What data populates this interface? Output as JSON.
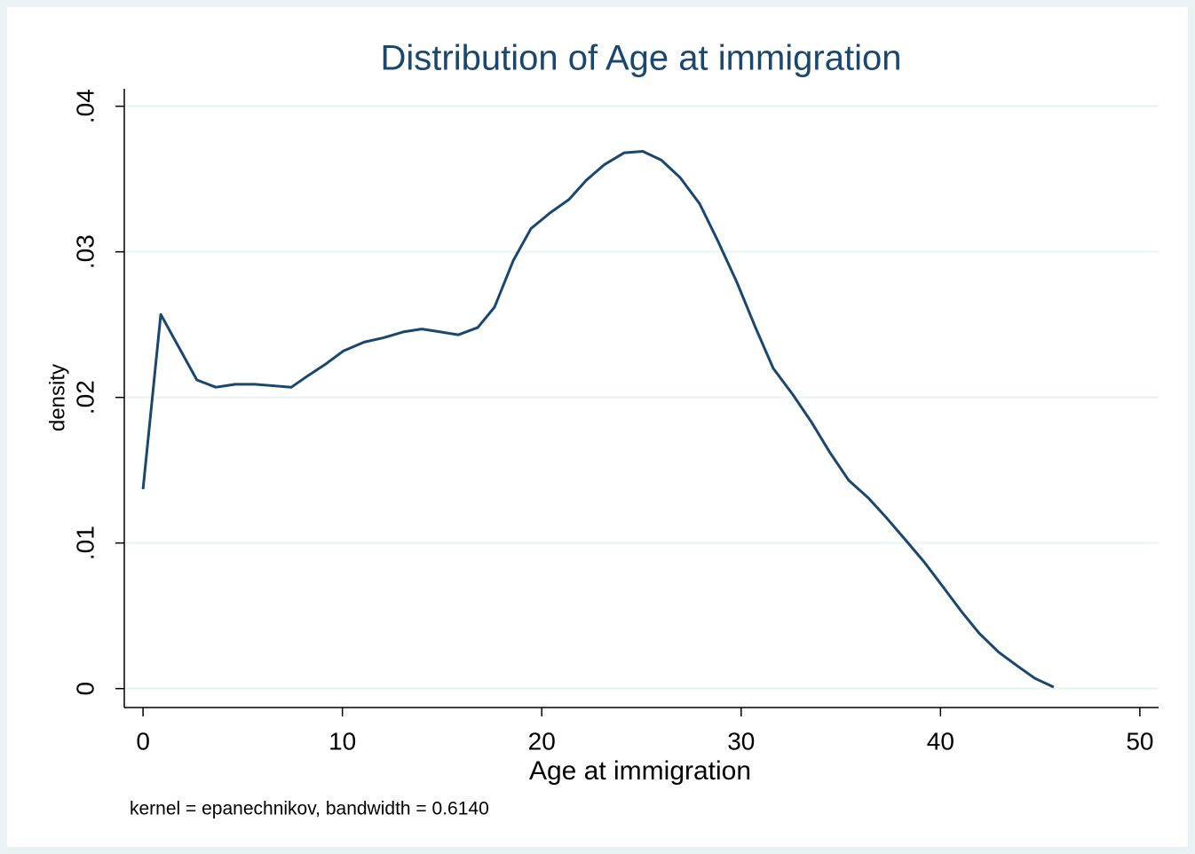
{
  "chart_data": {
    "type": "line",
    "title": "Distribution of Age at immigration",
    "xlabel": "Age at immigration",
    "ylabel": "density",
    "note": "kernel = epanechnikov, bandwidth = 0.6140",
    "color": "#1a476f",
    "grid": true,
    "x": [
      0,
      0.89,
      2.7,
      3.65,
      4.63,
      5.6,
      6.55,
      7.44,
      8.28,
      9.17,
      10.06,
      11.09,
      12.07,
      13.05,
      13.98,
      14.92,
      15.81,
      16.79,
      17.63,
      18.57,
      19.46,
      20.44,
      21.37,
      22.22,
      23.15,
      24.13,
      25.07,
      26.0,
      26.94,
      27.92,
      28.85,
      29.79,
      30.72,
      31.61,
      32.59,
      33.53,
      34.46,
      35.4,
      36.38,
      37.31,
      38.25,
      39.18,
      40.12,
      41.05,
      41.94,
      42.92,
      43.81,
      44.74,
      45.68
    ],
    "values": [
      0.0137,
      0.0257,
      0.0212,
      0.0207,
      0.0209,
      0.0209,
      0.0208,
      0.0207,
      0.0215,
      0.0223,
      0.0232,
      0.0238,
      0.0241,
      0.0245,
      0.0247,
      0.0245,
      0.0243,
      0.0248,
      0.0262,
      0.0294,
      0.0316,
      0.0327,
      0.0336,
      0.0349,
      0.036,
      0.0368,
      0.0369,
      0.0363,
      0.0351,
      0.0333,
      0.0307,
      0.0279,
      0.0248,
      0.022,
      0.0202,
      0.0183,
      0.0162,
      0.0143,
      0.0131,
      0.0117,
      0.0102,
      0.0087,
      0.007,
      0.0053,
      0.0038,
      0.0025,
      0.0016,
      0.0007,
      0.0001
    ],
    "xlim": [
      -0.94,
      50.94
    ],
    "xticks": [
      0,
      10,
      20,
      30,
      40,
      50
    ],
    "ylim": [
      -0.0013,
      0.0412
    ],
    "yticks": [
      0,
      {
        "value": 0.01,
        "label": ".01"
      },
      {
        "value": 0.02,
        "label": ".02"
      },
      {
        "value": 0.03,
        "label": ".03"
      },
      {
        "value": 0.04,
        "label": ".04"
      }
    ]
  }
}
